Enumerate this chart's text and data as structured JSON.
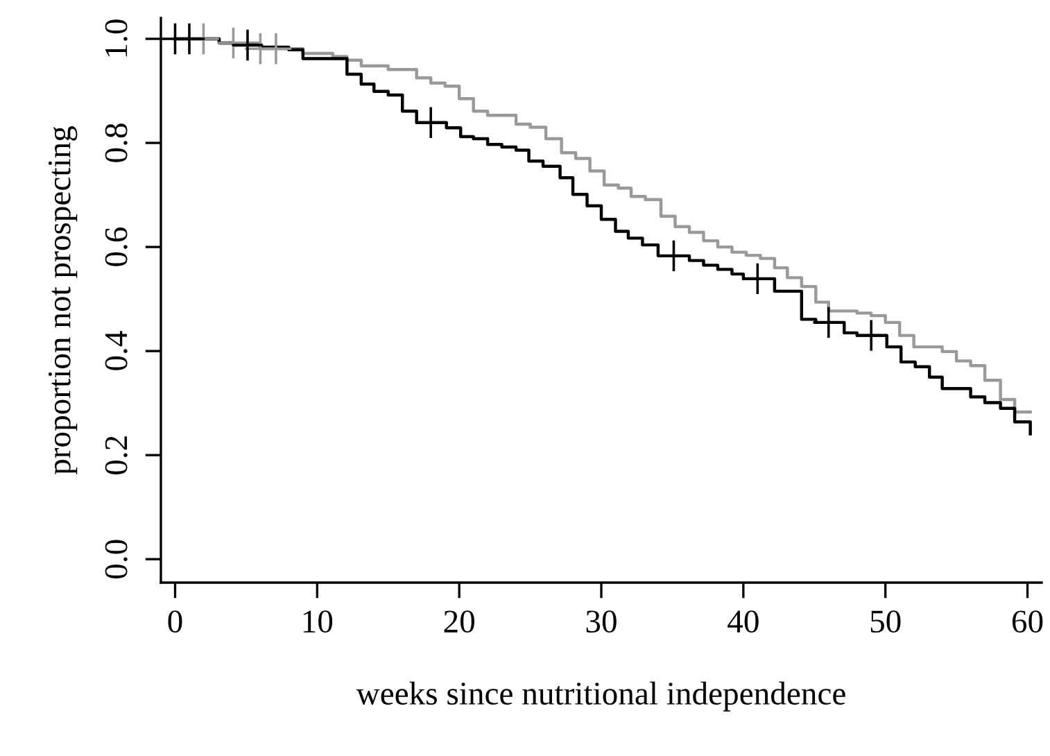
{
  "chart_data": {
    "type": "step",
    "xlabel": "weeks since nutritional independence",
    "ylabel": "proportion not prospecting",
    "xlim": [
      -1,
      61
    ],
    "ylim": [
      -0.045,
      1.04
    ],
    "xticks": [
      0,
      10,
      20,
      30,
      40,
      50,
      60
    ],
    "yticks": [
      {
        "value": 0,
        "label": "0.0"
      },
      {
        "value": 0.2,
        "label": "0.2"
      },
      {
        "value": 0.4,
        "label": "0.4"
      },
      {
        "value": 0.6,
        "label": "0.6"
      },
      {
        "value": 0.8,
        "label": "0.8"
      },
      {
        "value": 1,
        "label": "1.0"
      }
    ],
    "grid": false,
    "line_style": "solid",
    "series": [
      {
        "color": "#999999",
        "x": [
          0,
          3.1,
          6.0,
          9.0,
          11.1,
          12.1,
          13.1,
          15.0,
          17.0,
          18.0,
          19.0,
          20.0,
          21.0,
          22.0,
          24.0,
          25.0,
          26.1,
          27.2,
          28.2,
          29.2,
          30.2,
          31.2,
          32.1,
          33.1,
          34.2,
          35.2,
          36.2,
          37.2,
          38.2,
          39.2,
          40.2,
          41.2,
          42.2,
          43.1,
          44.1,
          45.1,
          46.0,
          48.0,
          49.0,
          50.0,
          51.0,
          52.0,
          54.0,
          55.0,
          56.0,
          57.0,
          58.1,
          59.1,
          60.2
        ],
        "values": [
          1.0,
          0.992,
          0.981,
          0.972,
          0.966,
          0.959,
          0.948,
          0.941,
          0.925,
          0.915,
          0.909,
          0.885,
          0.861,
          0.853,
          0.836,
          0.83,
          0.808,
          0.781,
          0.77,
          0.746,
          0.719,
          0.713,
          0.697,
          0.691,
          0.659,
          0.639,
          0.628,
          0.612,
          0.6,
          0.59,
          0.584,
          0.578,
          0.56,
          0.541,
          0.524,
          0.494,
          0.477,
          0.473,
          0.468,
          0.455,
          0.43,
          0.408,
          0.399,
          0.381,
          0.372,
          0.344,
          0.307,
          0.283,
          0.283
        ]
      },
      {
        "color": "#000000",
        "x": [
          0,
          3.1,
          4.1,
          6.0,
          8.0,
          9.0,
          12.1,
          13.1,
          14.0,
          15.0,
          16.0,
          17.0,
          19.1,
          20.1,
          21.0,
          22.0,
          23.0,
          24.0,
          24.9,
          25.9,
          27.1,
          28.0,
          29.0,
          30.0,
          31.0,
          31.9,
          32.9,
          34.0,
          36.2,
          37.2,
          38.2,
          39.2,
          40.0,
          42.2,
          44.1,
          45.1,
          47.1,
          48.0,
          50.1,
          51.1,
          52.1,
          53.1,
          54.0,
          56.0,
          57.0,
          58.1,
          59.1,
          60.2
        ],
        "values": [
          1.0,
          0.992,
          0.988,
          0.984,
          0.979,
          0.962,
          0.932,
          0.913,
          0.899,
          0.892,
          0.861,
          0.839,
          0.829,
          0.812,
          0.808,
          0.797,
          0.792,
          0.786,
          0.765,
          0.755,
          0.733,
          0.701,
          0.679,
          0.653,
          0.63,
          0.617,
          0.604,
          0.583,
          0.574,
          0.565,
          0.557,
          0.548,
          0.539,
          0.515,
          0.461,
          0.455,
          0.435,
          0.43,
          0.408,
          0.379,
          0.37,
          0.35,
          0.328,
          0.312,
          0.301,
          0.29,
          0.264,
          0.241
        ]
      },
      {
        "type": "scatter",
        "marker": "cross",
        "color": "#999999",
        "x": [
          2.0,
          4.1,
          6.0,
          7.1
        ],
        "values": [
          1.0,
          0.992,
          0.981,
          0.981
        ]
      },
      {
        "type": "scatter",
        "marker": "cross",
        "color": "#000000",
        "x": [
          0,
          1.0,
          5.1,
          18.0,
          35.1,
          41.0,
          46.0,
          49.0
        ],
        "values": [
          1.0,
          1.0,
          0.988,
          0.839,
          0.583,
          0.539,
          0.455,
          0.43
        ]
      }
    ]
  }
}
